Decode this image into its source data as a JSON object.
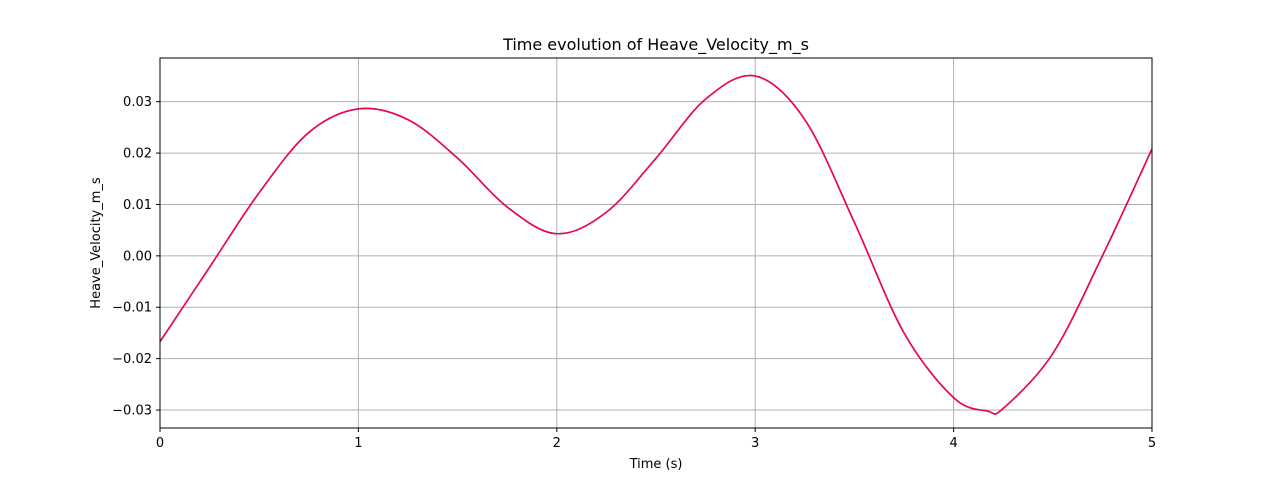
{
  "chart_data": {
    "type": "line",
    "title": "Time evolution of Heave_Velocity_m_s",
    "xlabel": "Time (s)",
    "ylabel": "Heave_Velocity_m_s",
    "xlim": [
      0,
      5
    ],
    "ylim": [
      -0.0335,
      0.0385
    ],
    "x_ticks": [
      0,
      1,
      2,
      3,
      4,
      5
    ],
    "x_tick_labels": [
      "0",
      "1",
      "2",
      "3",
      "4",
      "5"
    ],
    "y_ticks": [
      -0.03,
      -0.02,
      -0.01,
      0.0,
      0.01,
      0.02,
      0.03
    ],
    "y_tick_labels": [
      "−0.03",
      "−0.02",
      "−0.01",
      "0.00",
      "0.01",
      "0.02",
      "0.03"
    ],
    "grid": true,
    "legend": "none",
    "series": [
      {
        "color": "#0000ff",
        "x": [
          0,
          0.25,
          0.5,
          0.75,
          1.0,
          1.25,
          1.5,
          1.75,
          2.0,
          2.25,
          2.5,
          2.75,
          3.0,
          3.25,
          3.5,
          3.75,
          4.0,
          4.17,
          4.25,
          4.5,
          4.75,
          5.0
        ],
        "y": [
          -0.0167,
          -0.0022,
          0.0123,
          0.024,
          0.0286,
          0.0265,
          0.019,
          0.0095,
          0.0043,
          0.0085,
          0.019,
          0.0305,
          0.035,
          0.0265,
          0.0065,
          -0.015,
          -0.0276,
          -0.0302,
          -0.0297,
          -0.019,
          0.0,
          0.0208
        ]
      },
      {
        "color": "#ff0040",
        "x": [
          0,
          0.25,
          0.5,
          0.75,
          1.0,
          1.25,
          1.5,
          1.75,
          2.0,
          2.25,
          2.5,
          2.75,
          3.0,
          3.25,
          3.5,
          3.75,
          4.0,
          4.17,
          4.25,
          4.5,
          4.75,
          5.0
        ],
        "y": [
          -0.0167,
          -0.0022,
          0.0123,
          0.024,
          0.0286,
          0.0265,
          0.019,
          0.0095,
          0.0043,
          0.0085,
          0.019,
          0.0305,
          0.035,
          0.0265,
          0.0065,
          -0.015,
          -0.0276,
          -0.0302,
          -0.0297,
          -0.019,
          0.0,
          0.0208
        ]
      }
    ]
  }
}
